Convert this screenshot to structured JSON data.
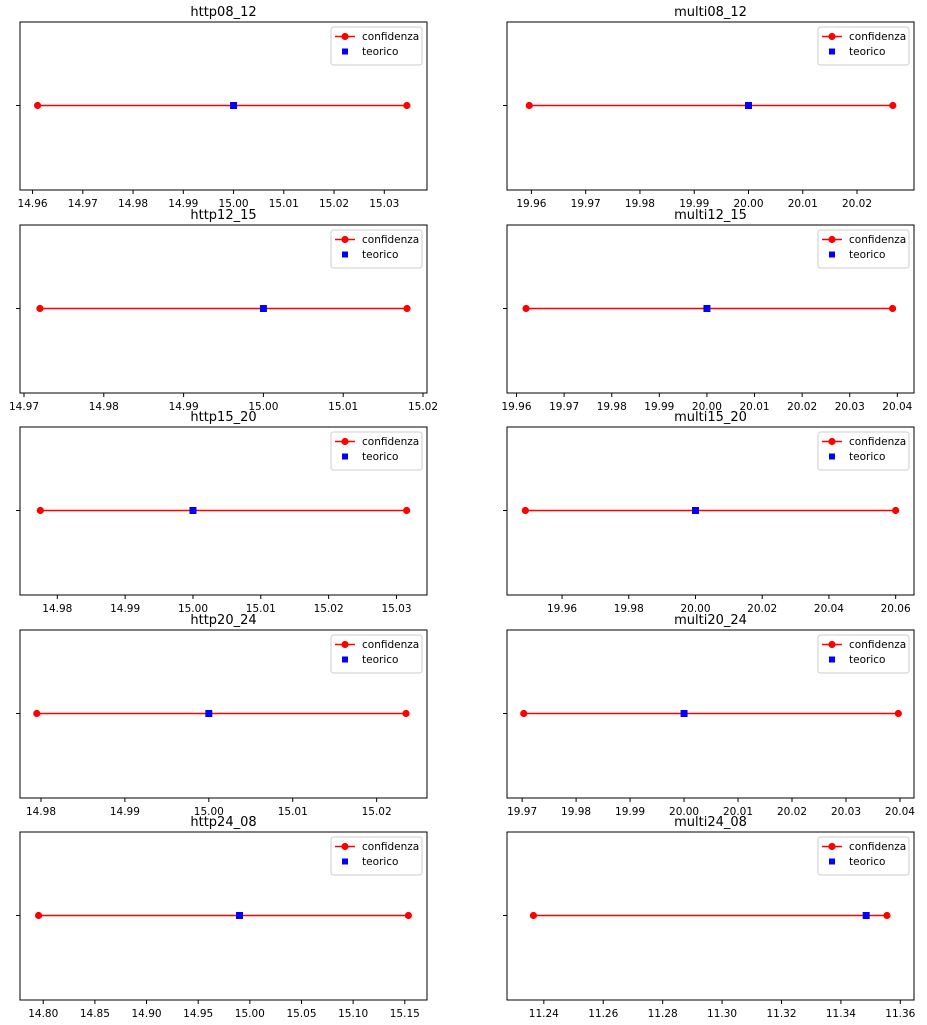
{
  "chart_data": [
    {
      "type": "scatter",
      "title": "http08_12",
      "xlim": [
        14.9575,
        15.0385
      ],
      "xticks": [
        "14.96",
        "14.97",
        "14.98",
        "14.99",
        "15.00",
        "15.01",
        "15.02",
        "15.03"
      ],
      "xtick_values": [
        14.96,
        14.97,
        14.98,
        14.99,
        15.0,
        15.01,
        15.02,
        15.03
      ],
      "yticks": [
        ""
      ],
      "confidence_interval": [
        14.961,
        15.0345
      ],
      "theoretical": 15.0,
      "legend": {
        "position": "top-right",
        "entries": [
          "confidenza",
          "teorico"
        ]
      }
    },
    {
      "type": "scatter",
      "title": "multi08_12",
      "xlim": [
        19.9555,
        20.0305
      ],
      "xticks": [
        "19.96",
        "19.97",
        "19.98",
        "19.99",
        "20.00",
        "20.01",
        "20.02"
      ],
      "xtick_values": [
        19.96,
        19.97,
        19.98,
        19.99,
        20.0,
        20.01,
        20.02
      ],
      "yticks": [
        ""
      ],
      "confidence_interval": [
        19.9596,
        20.0266
      ],
      "theoretical": 20.0,
      "legend": {
        "position": "top-right",
        "entries": [
          "confidenza",
          "teorico"
        ]
      }
    },
    {
      "type": "scatter",
      "title": "http12_15",
      "xlim": [
        14.9695,
        15.0205
      ],
      "xticks": [
        "14.97",
        "14.98",
        "14.99",
        "15.00",
        "15.01",
        "15.02"
      ],
      "xtick_values": [
        14.97,
        14.98,
        14.99,
        15.0,
        15.01,
        15.02
      ],
      "yticks": [
        ""
      ],
      "confidence_interval": [
        14.972,
        15.018
      ],
      "theoretical": 15.0,
      "legend": {
        "position": "top-right",
        "entries": [
          "confidenza",
          "teorico"
        ]
      }
    },
    {
      "type": "scatter",
      "title": "multi12_15",
      "xlim": [
        19.958,
        20.0435
      ],
      "xticks": [
        "19.96",
        "19.97",
        "19.98",
        "19.99",
        "20.00",
        "20.01",
        "20.02",
        "20.03",
        "20.04"
      ],
      "xtick_values": [
        19.96,
        19.97,
        19.98,
        19.99,
        20.0,
        20.01,
        20.02,
        20.03,
        20.04
      ],
      "yticks": [
        ""
      ],
      "confidence_interval": [
        19.962,
        20.039
      ],
      "theoretical": 20.0,
      "legend": {
        "position": "top-right",
        "entries": [
          "confidenza",
          "teorico"
        ]
      }
    },
    {
      "type": "scatter",
      "title": "http15_20",
      "xlim": [
        14.9745,
        15.0345
      ],
      "xticks": [
        "14.98",
        "14.99",
        "15.00",
        "15.01",
        "15.02",
        "15.03"
      ],
      "xtick_values": [
        14.98,
        14.99,
        15.0,
        15.01,
        15.02,
        15.03
      ],
      "yticks": [
        ""
      ],
      "confidence_interval": [
        14.9775,
        15.0315
      ],
      "theoretical": 15.0,
      "legend": {
        "position": "top-right",
        "entries": [
          "confidenza",
          "teorico"
        ]
      }
    },
    {
      "type": "scatter",
      "title": "multi15_20",
      "xlim": [
        19.9435,
        20.0655
      ],
      "xticks": [
        "19.96",
        "19.98",
        "20.00",
        "20.02",
        "20.04",
        "20.06"
      ],
      "xtick_values": [
        19.96,
        19.98,
        20.0,
        20.02,
        20.04,
        20.06
      ],
      "yticks": [
        ""
      ],
      "confidence_interval": [
        19.949,
        20.06
      ],
      "theoretical": 20.0,
      "legend": {
        "position": "top-right",
        "entries": [
          "confidenza",
          "teorico"
        ]
      }
    },
    {
      "type": "scatter",
      "title": "http20_24",
      "xlim": [
        14.9775,
        15.026
      ],
      "xticks": [
        "14.98",
        "14.99",
        "15.00",
        "15.01",
        "15.02"
      ],
      "xtick_values": [
        14.98,
        14.99,
        15.0,
        15.01,
        15.02
      ],
      "yticks": [
        ""
      ],
      "confidence_interval": [
        14.9795,
        15.0235
      ],
      "theoretical": 15.0,
      "legend": {
        "position": "top-right",
        "entries": [
          "confidenza",
          "teorico"
        ]
      }
    },
    {
      "type": "scatter",
      "title": "multi20_24",
      "xlim": [
        19.9672,
        20.0426
      ],
      "xticks": [
        "19.97",
        "19.98",
        "19.99",
        "20.00",
        "20.01",
        "20.02",
        "20.03",
        "20.04"
      ],
      "xtick_values": [
        19.97,
        19.98,
        19.99,
        20.0,
        20.01,
        20.02,
        20.03,
        20.04
      ],
      "yticks": [
        ""
      ],
      "confidence_interval": [
        19.9703,
        20.0397
      ],
      "theoretical": 20.0,
      "legend": {
        "position": "top-right",
        "entries": [
          "confidenza",
          "teorico"
        ]
      }
    },
    {
      "type": "scatter",
      "title": "http24_08",
      "xlim": [
        14.7775,
        15.1715
      ],
      "xticks": [
        "14.80",
        "14.85",
        "14.90",
        "14.95",
        "15.00",
        "15.05",
        "15.10",
        "15.15"
      ],
      "xtick_values": [
        14.8,
        14.85,
        14.9,
        14.95,
        15.0,
        15.05,
        15.1,
        15.15
      ],
      "yticks": [
        ""
      ],
      "confidence_interval": [
        14.7955,
        15.1535
      ],
      "theoretical": 14.99,
      "legend": {
        "position": "top-right",
        "entries": [
          "confidenza",
          "teorico"
        ]
      }
    },
    {
      "type": "scatter",
      "title": "multi24_08",
      "xlim": [
        11.2276,
        11.3646
      ],
      "xticks": [
        "11.24",
        "11.26",
        "11.28",
        "11.30",
        "11.32",
        "11.34",
        "11.36"
      ],
      "xtick_values": [
        11.24,
        11.26,
        11.28,
        11.3,
        11.32,
        11.34,
        11.36
      ],
      "yticks": [
        ""
      ],
      "confidence_interval": [
        11.2365,
        11.3555
      ],
      "theoretical": 11.3485,
      "legend": {
        "position": "top-right",
        "entries": [
          "confidenza",
          "teorico"
        ]
      }
    }
  ],
  "colors": {
    "confidenza": "#ff0000",
    "teorico": "#0000ff"
  }
}
